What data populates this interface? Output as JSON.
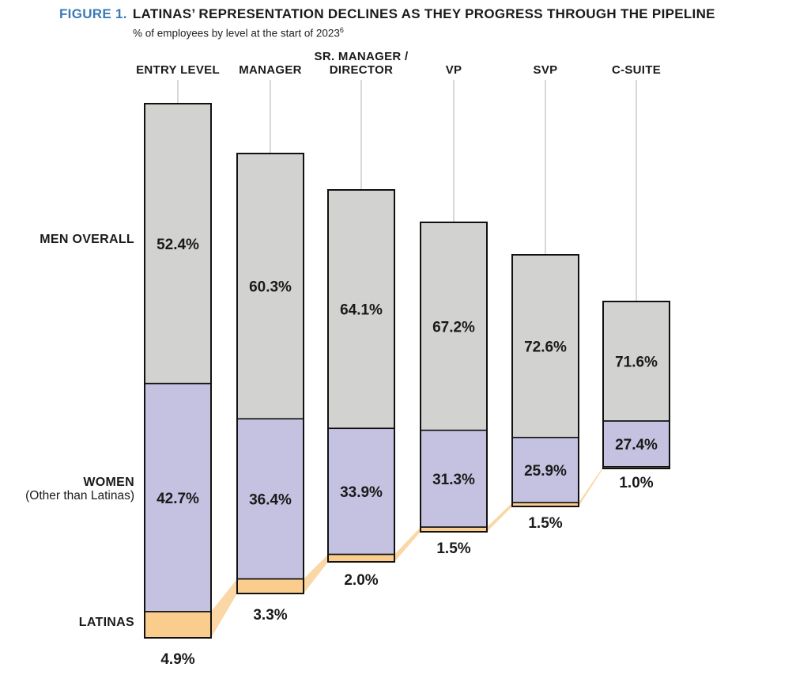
{
  "header": {
    "figure_label": "FIGURE 1.",
    "title": "LATINAS’ REPRESENTATION DECLINES AS THEY PROGRESS THROUGH THE PIPELINE",
    "subtitle": "% of employees by level at the start of 2023",
    "subtitle_footnote": "6"
  },
  "row_labels": {
    "men": "MEN OVERALL",
    "women": "WOMEN",
    "women_sub": "(Other than Latinas)",
    "latinas": "LATINAS"
  },
  "colors": {
    "men_segment": "#D2D2D0",
    "women_segment": "#C5C1E1",
    "latinas_segment": "#FACD8C",
    "connector_band": "#FAD7A4",
    "figure_label_blue": "#3A79B8",
    "bar_border": "#111111",
    "leader_line": "#CBCBCB",
    "label_text": "#1A1A1A"
  },
  "chart_data": {
    "type": "bar",
    "stacked": true,
    "grid": false,
    "unit": "%",
    "ylim": [
      0,
      100
    ],
    "legend_position": "left",
    "title": "FIGURE 1. LATINAS’ REPRESENTATION DECLINES AS THEY PROGRESS THROUGH THE PIPELINE",
    "subtitle": "% of employees by level at the start of 2023",
    "categories": [
      "ENTRY LEVEL",
      "MANAGER",
      "SR. MANAGER / DIRECTOR",
      "VP",
      "SVP",
      "C-SUITE"
    ],
    "categories_display": [
      [
        "ENTRY LEVEL"
      ],
      [
        "MANAGER"
      ],
      [
        "SR. MANAGER /",
        "DIRECTOR"
      ],
      [
        "VP"
      ],
      [
        "SVP"
      ],
      [
        "C-SUITE"
      ]
    ],
    "series": [
      {
        "name": "MEN OVERALL",
        "values": [
          52.4,
          60.3,
          64.1,
          67.2,
          72.6,
          71.6
        ]
      },
      {
        "name": "WOMEN (Other than Latinas)",
        "values": [
          42.7,
          36.4,
          33.9,
          31.3,
          25.9,
          27.4
        ]
      },
      {
        "name": "LATINAS",
        "values": [
          4.9,
          3.3,
          2.0,
          1.5,
          1.5,
          1.0
        ]
      }
    ],
    "value_labels": {
      "men": [
        "52.4%",
        "60.3%",
        "64.1%",
        "67.2%",
        "72.6%",
        "71.6%"
      ],
      "women": [
        "42.7%",
        "36.4%",
        "33.9%",
        "31.3%",
        "25.9%",
        "27.4%"
      ],
      "latinas": [
        "4.9%",
        "3.3%",
        "2.0%",
        "1.5%",
        "1.5%",
        "1.0%"
      ]
    }
  }
}
